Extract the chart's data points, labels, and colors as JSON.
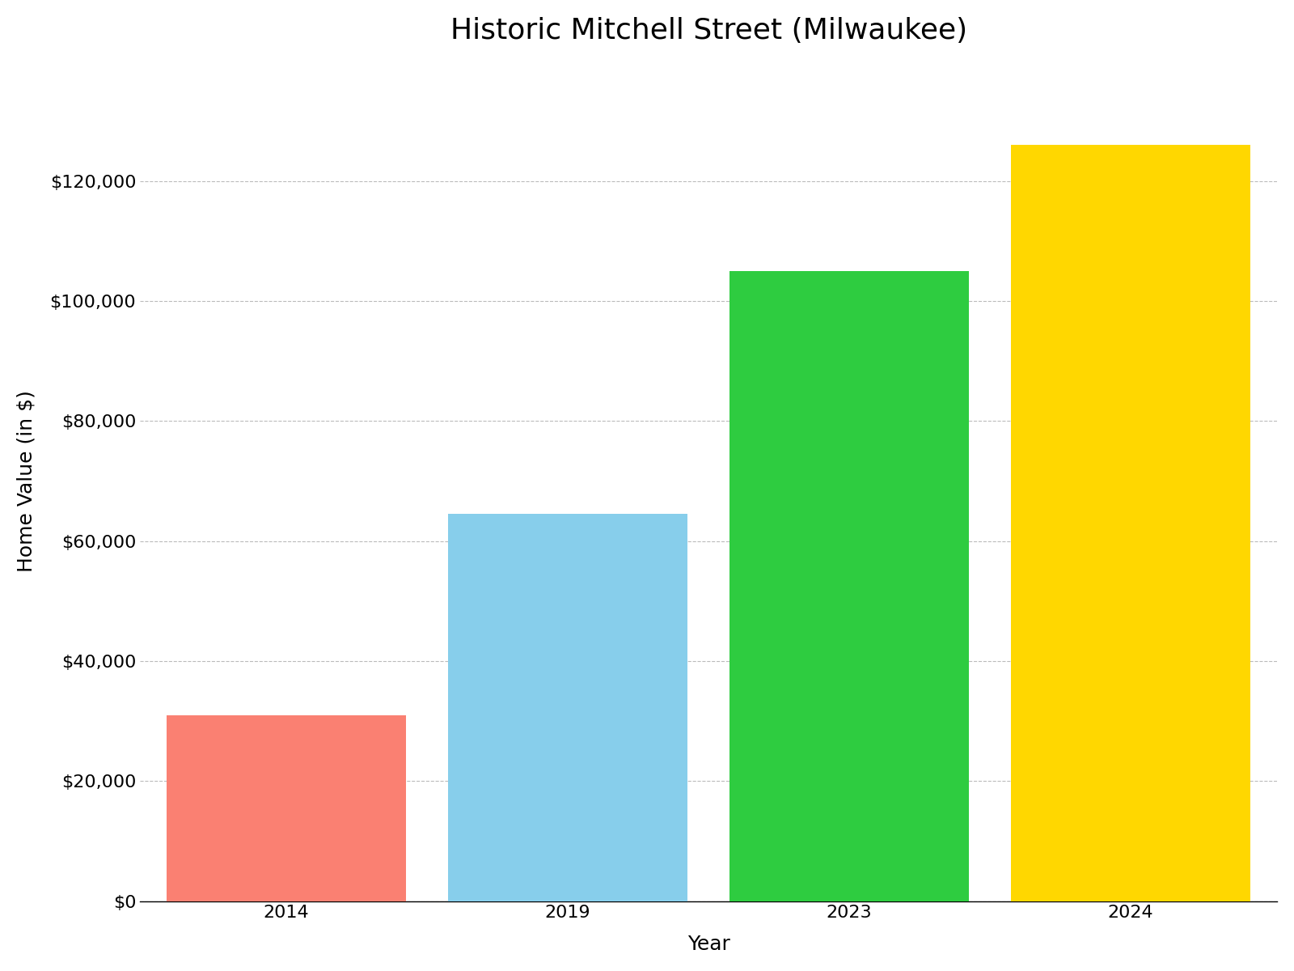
{
  "title": "Historic Mitchell Street (Milwaukee)",
  "categories": [
    "2014",
    "2019",
    "2023",
    "2024"
  ],
  "values": [
    31000,
    64500,
    105000,
    126000
  ],
  "bar_colors": [
    "#FA8072",
    "#87CEEB",
    "#2ECC40",
    "#FFD700"
  ],
  "xlabel": "Year",
  "ylabel": "Home Value (in $)",
  "ylim": [
    0,
    140000
  ],
  "yticks": [
    0,
    20000,
    40000,
    60000,
    80000,
    100000,
    120000
  ],
  "title_fontsize": 26,
  "axis_label_fontsize": 18,
  "tick_fontsize": 16,
  "background_color": "#ffffff",
  "bar_width": 0.85
}
